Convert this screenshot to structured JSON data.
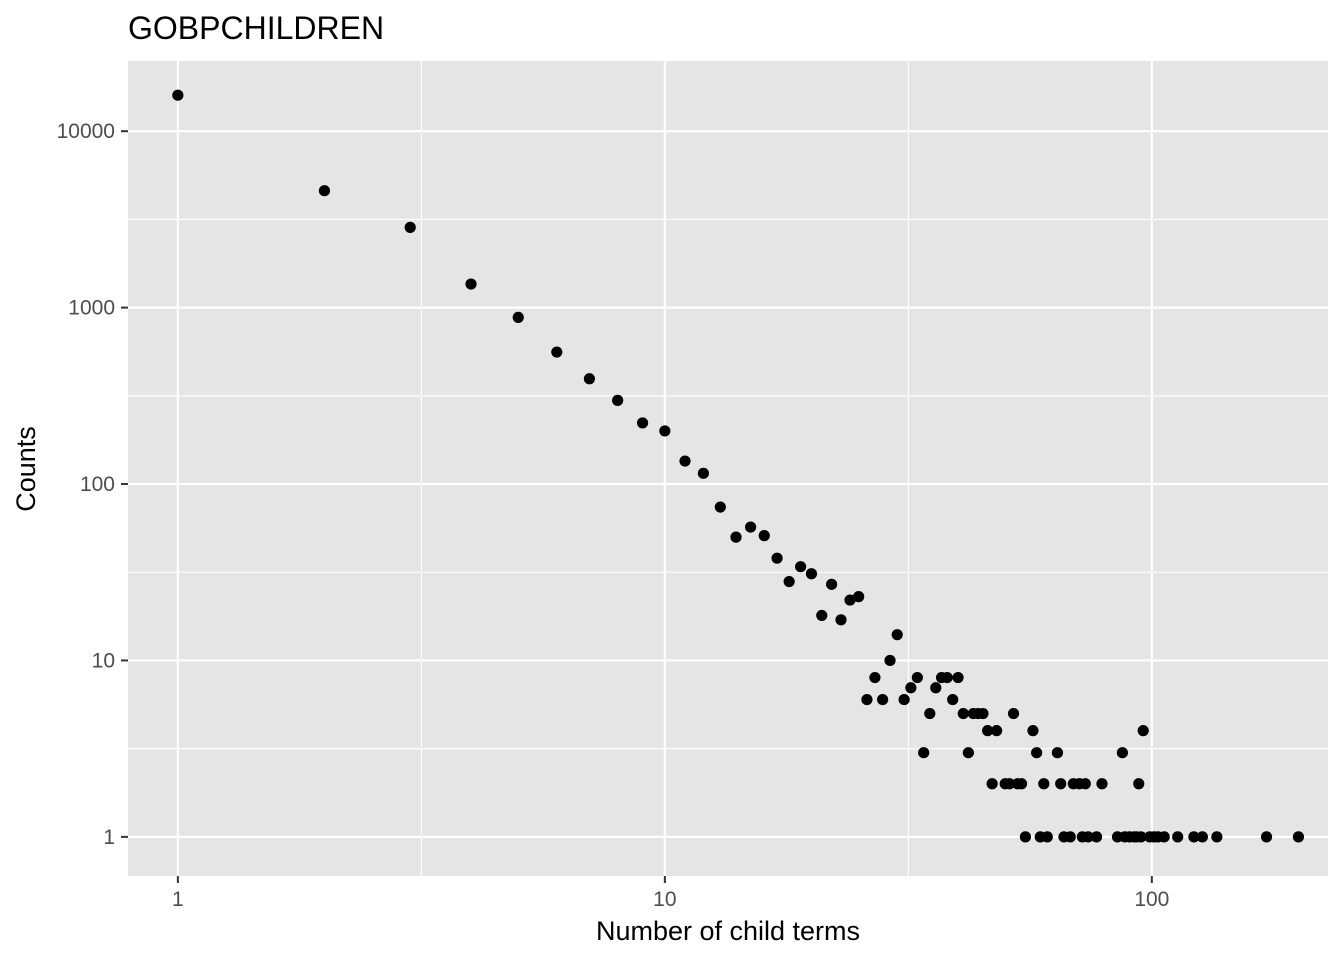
{
  "chart_data": {
    "type": "scatter",
    "title": "GOBPCHILDREN",
    "xlabel": "Number of child terms",
    "ylabel": "Counts",
    "x_scale": "log10",
    "y_scale": "log10",
    "xlim": [
      0.79,
      230
    ],
    "ylim": [
      0.6,
      25000
    ],
    "x_ticks": [
      1,
      10,
      100
    ],
    "x_tick_labels": [
      "1",
      "10",
      "100"
    ],
    "y_ticks": [
      1,
      10,
      100,
      1000,
      10000
    ],
    "y_tick_labels": [
      "1",
      "10",
      "100",
      "1000",
      "10000"
    ],
    "grid": true,
    "legend": "none",
    "colors": {
      "panel": "#e5e5e5",
      "grid": "#ffffff",
      "point": "#000000",
      "tick": "#4d4d4d"
    },
    "points": [
      {
        "x": 1,
        "y": 16000
      },
      {
        "x": 2,
        "y": 4600
      },
      {
        "x": 3,
        "y": 2850
      },
      {
        "x": 4,
        "y": 1360
      },
      {
        "x": 5,
        "y": 880
      },
      {
        "x": 6,
        "y": 560
      },
      {
        "x": 7,
        "y": 395
      },
      {
        "x": 8,
        "y": 298
      },
      {
        "x": 9,
        "y": 222
      },
      {
        "x": 10,
        "y": 200
      },
      {
        "x": 11,
        "y": 135
      },
      {
        "x": 12,
        "y": 115
      },
      {
        "x": 13,
        "y": 74
      },
      {
        "x": 14,
        "y": 50
      },
      {
        "x": 15,
        "y": 57
      },
      {
        "x": 16,
        "y": 51
      },
      {
        "x": 17,
        "y": 38
      },
      {
        "x": 18,
        "y": 28
      },
      {
        "x": 19,
        "y": 34
      },
      {
        "x": 20,
        "y": 31
      },
      {
        "x": 21,
        "y": 18
      },
      {
        "x": 22,
        "y": 27
      },
      {
        "x": 23,
        "y": 17
      },
      {
        "x": 24,
        "y": 22
      },
      {
        "x": 25,
        "y": 23
      },
      {
        "x": 26,
        "y": 6
      },
      {
        "x": 27,
        "y": 8
      },
      {
        "x": 28,
        "y": 6
      },
      {
        "x": 29,
        "y": 10
      },
      {
        "x": 30,
        "y": 14
      },
      {
        "x": 31,
        "y": 6
      },
      {
        "x": 32,
        "y": 7
      },
      {
        "x": 33,
        "y": 8
      },
      {
        "x": 34,
        "y": 3
      },
      {
        "x": 35,
        "y": 5
      },
      {
        "x": 36,
        "y": 7
      },
      {
        "x": 37,
        "y": 8
      },
      {
        "x": 38,
        "y": 8
      },
      {
        "x": 39,
        "y": 6
      },
      {
        "x": 40,
        "y": 8
      },
      {
        "x": 41,
        "y": 5
      },
      {
        "x": 42,
        "y": 3
      },
      {
        "x": 43,
        "y": 5
      },
      {
        "x": 44,
        "y": 5
      },
      {
        "x": 45,
        "y": 5
      },
      {
        "x": 46,
        "y": 4
      },
      {
        "x": 47,
        "y": 2
      },
      {
        "x": 48,
        "y": 4
      },
      {
        "x": 50,
        "y": 2
      },
      {
        "x": 51,
        "y": 2
      },
      {
        "x": 52,
        "y": 5
      },
      {
        "x": 53,
        "y": 2
      },
      {
        "x": 54,
        "y": 2
      },
      {
        "x": 55,
        "y": 1
      },
      {
        "x": 57,
        "y": 4
      },
      {
        "x": 58,
        "y": 3
      },
      {
        "x": 59,
        "y": 1
      },
      {
        "x": 60,
        "y": 2
      },
      {
        "x": 61,
        "y": 1
      },
      {
        "x": 64,
        "y": 3
      },
      {
        "x": 65,
        "y": 2
      },
      {
        "x": 66,
        "y": 1
      },
      {
        "x": 68,
        "y": 1
      },
      {
        "x": 69,
        "y": 2
      },
      {
        "x": 71,
        "y": 2
      },
      {
        "x": 72,
        "y": 1
      },
      {
        "x": 73,
        "y": 2
      },
      {
        "x": 74,
        "y": 1
      },
      {
        "x": 77,
        "y": 1
      },
      {
        "x": 79,
        "y": 2
      },
      {
        "x": 85,
        "y": 1
      },
      {
        "x": 87,
        "y": 3
      },
      {
        "x": 88,
        "y": 1
      },
      {
        "x": 90,
        "y": 1
      },
      {
        "x": 92,
        "y": 1
      },
      {
        "x": 93,
        "y": 1
      },
      {
        "x": 94,
        "y": 2
      },
      {
        "x": 95,
        "y": 1
      },
      {
        "x": 96,
        "y": 4
      },
      {
        "x": 99,
        "y": 1
      },
      {
        "x": 101,
        "y": 1
      },
      {
        "x": 103,
        "y": 1
      },
      {
        "x": 106,
        "y": 1
      },
      {
        "x": 113,
        "y": 1
      },
      {
        "x": 122,
        "y": 1
      },
      {
        "x": 127,
        "y": 1
      },
      {
        "x": 136,
        "y": 1
      },
      {
        "x": 172,
        "y": 1
      },
      {
        "x": 200,
        "y": 1
      }
    ]
  }
}
